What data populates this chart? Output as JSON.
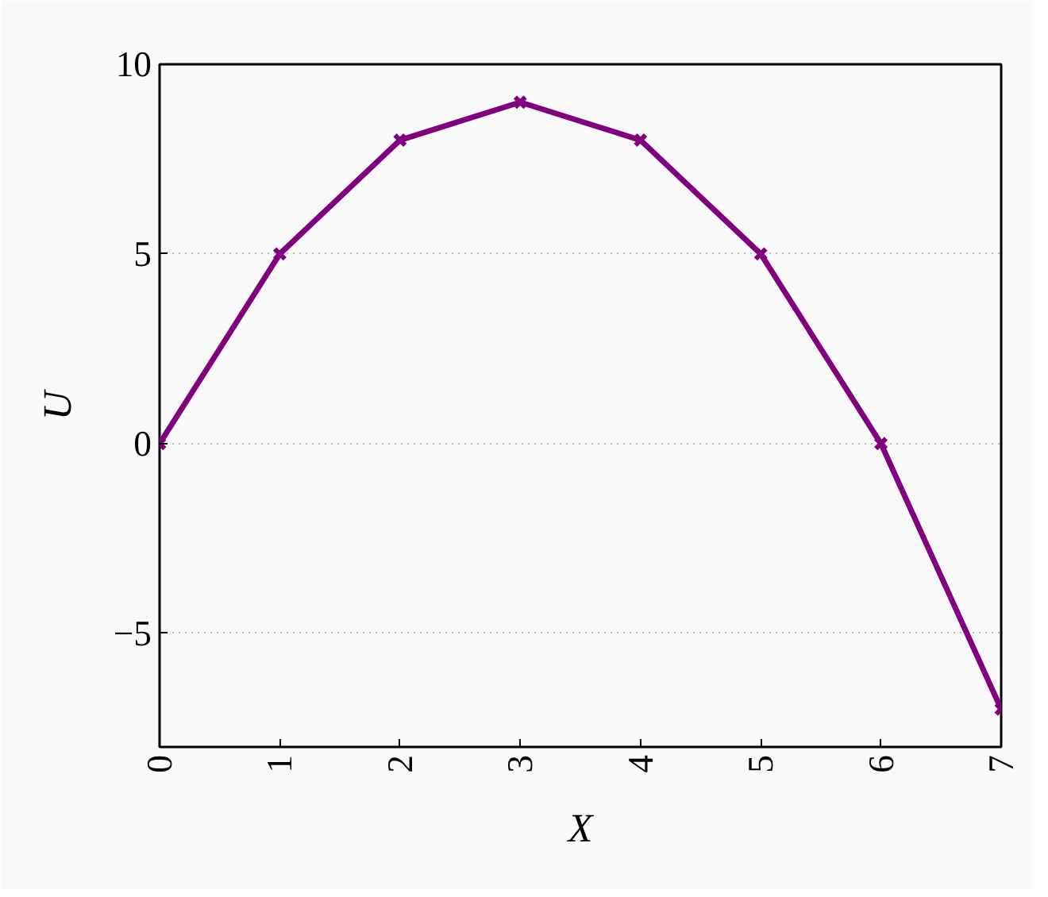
{
  "chart_data": {
    "type": "line",
    "xlabel": "X",
    "ylabel": "U",
    "x": [
      0,
      1,
      2,
      3,
      4,
      5,
      6,
      7
    ],
    "series": [
      {
        "color": "#800080",
        "values": [
          0,
          5,
          8,
          9,
          8,
          5,
          0,
          -7
        ]
      }
    ],
    "xlim": [
      0,
      7
    ],
    "ylim": [
      -8,
      10
    ],
    "xticks": [
      0,
      1,
      2,
      3,
      4,
      5,
      6,
      7
    ],
    "yticks": [
      -5,
      0,
      5,
      10
    ],
    "grid": "y",
    "marker": "cross",
    "line_style": "solid"
  }
}
